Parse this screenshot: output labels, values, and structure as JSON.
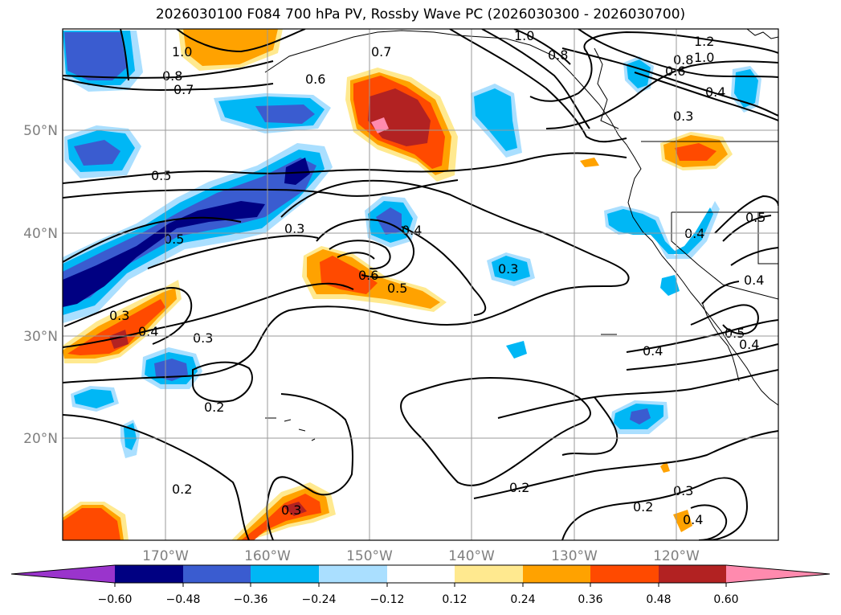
{
  "title": "2026030100 F084 700 hPa PV, Rossby Wave PC (2026030300 - 2026030700)",
  "map": {
    "lat_labels": [
      "50°N",
      "40°N",
      "30°N",
      "20°N"
    ],
    "lon_labels": [
      "170°W",
      "160°W",
      "150°W",
      "140°W",
      "130°W",
      "120°W"
    ],
    "gridlines": true
  },
  "contour_labels": [
    "1.0",
    "0.8",
    "0.7",
    "0.6",
    "0.7",
    "1.0",
    "0.8",
    "1.2",
    "1.0",
    "0.8",
    "0.6",
    "0.4",
    "0.3",
    "0.5",
    "0.3",
    "0.5",
    "0.4",
    "0.6",
    "0.5",
    "0.3",
    "0.3",
    "0.4",
    "0.3",
    "0.2",
    "0.2",
    "0.3",
    "0.2",
    "0.4",
    "0.5",
    "0.4",
    "0.5",
    "0.4",
    "0.4",
    "0.2",
    "0.3",
    "0.4"
  ],
  "colorbar": {
    "ticks": [
      "−0.60",
      "−0.48",
      "−0.36",
      "−0.24",
      "−0.12",
      "0.12",
      "0.24",
      "0.36",
      "0.48",
      "0.60"
    ],
    "colors": [
      "#9a34cc",
      "#000082",
      "#3a5cd0",
      "#00b7f5",
      "#aadfff",
      "#ffffff",
      "#ffe98f",
      "#ffa200",
      "#ff4a00",
      "#b22222",
      "#ff8aae"
    ]
  }
}
